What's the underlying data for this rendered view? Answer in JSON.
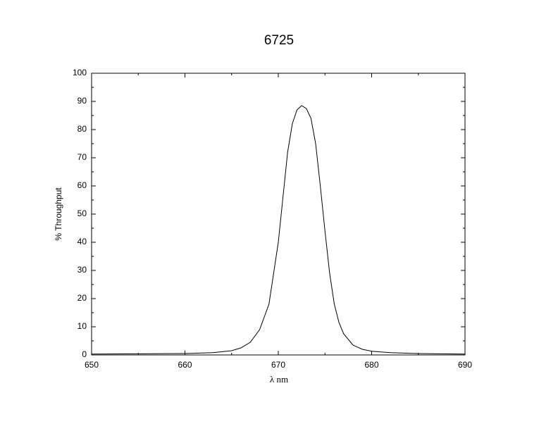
{
  "chart_data": {
    "type": "line",
    "title": "6725",
    "x_label": "λ nm",
    "y_label": "% Throughput",
    "x": [
      650,
      655,
      660,
      663,
      665,
      666,
      667,
      668,
      669,
      670,
      670.5,
      671,
      671.5,
      672,
      672.5,
      673,
      673.5,
      674,
      674.5,
      675,
      675.5,
      676,
      676.5,
      677,
      678,
      679,
      680,
      682,
      685,
      690
    ],
    "series": [
      {
        "name": "6725",
        "color": "#000000",
        "values": [
          0.3,
          0.4,
          0.5,
          0.8,
          1.5,
          2.5,
          4.5,
          9,
          18,
          40,
          56,
          72,
          82,
          87,
          88.5,
          87.5,
          84,
          75,
          60,
          44,
          29,
          18,
          11.5,
          7.5,
          3.5,
          2,
          1.3,
          0.8,
          0.5,
          0.3
        ]
      }
    ],
    "xlim": [
      650,
      690
    ],
    "xticks": [
      650,
      660,
      670,
      680,
      690
    ],
    "xminorticks": [
      655,
      665,
      675,
      685
    ],
    "ylim": [
      0,
      100
    ],
    "yticks": [
      0,
      10,
      20,
      30,
      40,
      50,
      60,
      70,
      80,
      90,
      100
    ],
    "yminorticks": [
      5,
      15,
      25,
      35,
      45,
      55,
      65,
      75,
      85,
      95
    ]
  }
}
